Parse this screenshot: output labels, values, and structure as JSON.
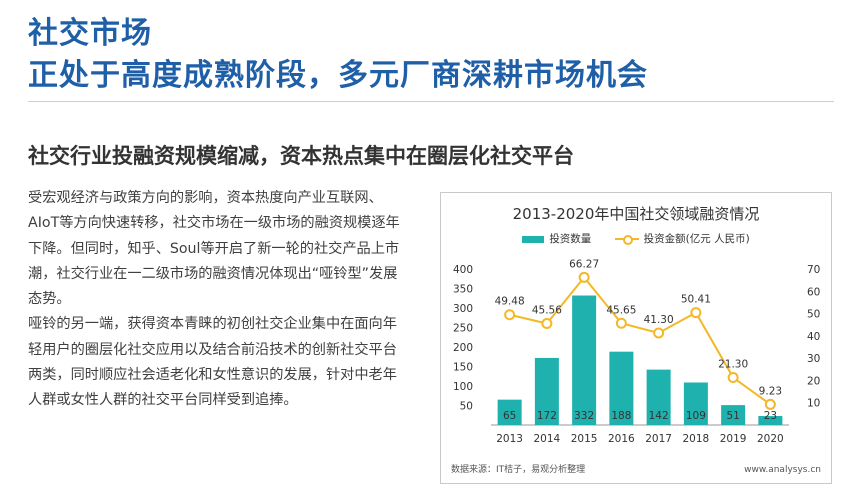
{
  "header": {
    "title_line1": "社交市场",
    "title_line2": "正处于高度成熟阶段，多元厂商深耕市场机会",
    "subheading": "社交行业投融资规模缩减，资本热点集中在圈层化社交平台"
  },
  "body": {
    "paragraph1": "受宏观经济与政策方向的影响，资本热度向产业互联网、AIoT等方向快速转移，社交市场在一级市场的融资规模逐年下降。但同时，知乎、Soul等开启了新一轮的社交产品上市潮，社交行业在一二级市场的融资情况体现出“哑铃型”发展态势。",
    "paragraph2": "哑铃的另一端，获得资本青睐的初创社交企业集中在面向年轻用户的圈层化社交应用以及结合前沿技术的创新社交平台两类，同时顺应社会适老化和女性意识的发展，针对中老年人群或女性人群的社交平台同样受到追捧。"
  },
  "chart_data": {
    "type": "bar",
    "title": "2013-2020年中国社交领域融资情况",
    "categories": [
      "2013",
      "2014",
      "2015",
      "2016",
      "2017",
      "2018",
      "2019",
      "2020"
    ],
    "series": [
      {
        "name": "投资数量",
        "type": "bar",
        "axis": "left",
        "values": [
          65,
          172,
          332,
          188,
          142,
          109,
          51,
          23
        ],
        "color": "#1fb1ae"
      },
      {
        "name": "投资金额(亿元 人民币)",
        "type": "line",
        "axis": "right",
        "values": [
          49.48,
          45.56,
          66.27,
          45.65,
          41.3,
          50.41,
          21.3,
          9.23
        ],
        "labels": [
          "49.48",
          "45.56",
          "66.27",
          "45.65",
          "41.30",
          "50.41",
          "21.30",
          "9.23"
        ],
        "color": "#f4b827"
      }
    ],
    "y_left": {
      "min": 0,
      "max": 400,
      "ticks": [
        "50",
        "100",
        "150",
        "200",
        "250",
        "300",
        "350",
        "400"
      ]
    },
    "y_right": {
      "min": 0,
      "max": 70,
      "ticks": [
        "10",
        "20",
        "30",
        "40",
        "50",
        "60",
        "70"
      ]
    },
    "legend_position": "top-center",
    "grid": false
  },
  "chart_card": {
    "source": "数据来源：IT桔子，易观分析整理",
    "site": "www.analysys.cn"
  }
}
